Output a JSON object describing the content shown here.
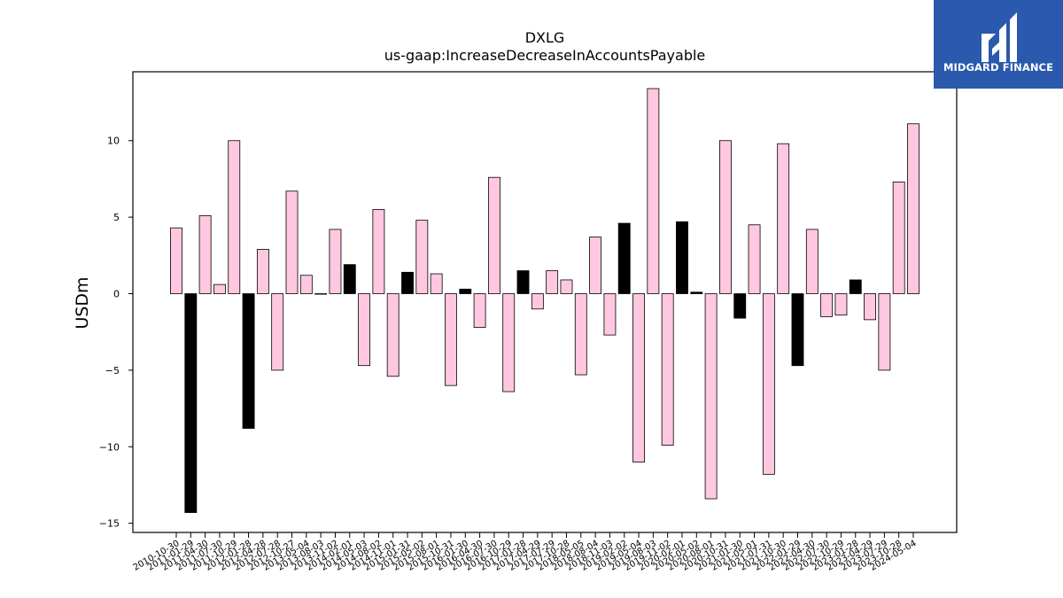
{
  "logo": {
    "text": "MIDGARD FINANCE",
    "background": "#2a59ad"
  },
  "chart_data": {
    "type": "bar",
    "title": "DXLG",
    "subtitle": "us-gaap:IncreaseDecreaseInAccountsPayable",
    "xlabel": "",
    "ylabel": "USDm",
    "ylim": [
      -15.6,
      14.5
    ],
    "yticks": [
      -15,
      -10,
      -5,
      0,
      5,
      10
    ],
    "grid": false,
    "colors": {
      "quarter": "#ffc8e0",
      "annual": "#000000",
      "edge": "#000000"
    },
    "categories": [
      "2010-10-30",
      "2011-01-29",
      "2011-04-30",
      "2011-07-30",
      "2011-10-29",
      "2012-01-28",
      "2012-04-28",
      "2012-07-28",
      "2012-10-27",
      "2013-05-04",
      "2013-08-03",
      "2013-11-02",
      "2014-02-01",
      "2014-05-03",
      "2014-08-02",
      "2014-11-01",
      "2015-01-31",
      "2015-05-02",
      "2015-08-01",
      "2015-10-31",
      "2016-01-30",
      "2016-04-30",
      "2016-07-30",
      "2016-10-29",
      "2017-01-28",
      "2017-04-29",
      "2017-07-29",
      "2017-10-28",
      "2018-05-05",
      "2018-08-04",
      "2018-11-03",
      "2019-02-02",
      "2019-05-04",
      "2019-08-03",
      "2019-11-02",
      "2020-02-01",
      "2020-05-02",
      "2020-08-01",
      "2020-10-31",
      "2021-01-30",
      "2021-05-01",
      "2021-07-31",
      "2021-10-30",
      "2022-01-29",
      "2022-04-30",
      "2022-07-30",
      "2022-10-29",
      "2023-01-28",
      "2023-04-29",
      "2023-07-29",
      "2023-10-28",
      "2024-05-04"
    ],
    "values": [
      4.3,
      -14.3,
      5.1,
      0.6,
      10.0,
      -8.8,
      2.9,
      -5.0,
      6.7,
      1.2,
      0.0,
      4.2,
      1.9,
      -4.7,
      5.5,
      -5.4,
      1.4,
      4.8,
      1.3,
      -6.0,
      0.3,
      -2.2,
      7.6,
      -6.4,
      1.5,
      -1.0,
      1.5,
      0.9,
      -5.3,
      3.7,
      -2.7,
      4.6,
      -11.0,
      13.4,
      -9.9,
      4.7,
      0.1,
      -13.4,
      10.0,
      -1.6,
      4.5,
      -11.8,
      9.8,
      -4.7,
      4.2,
      -1.5,
      -1.4,
      0.9,
      -1.7,
      -5.0,
      7.3,
      11.1
    ],
    "annual_flags": [
      0,
      1,
      0,
      0,
      0,
      1,
      0,
      0,
      0,
      0,
      0,
      0,
      1,
      0,
      0,
      0,
      1,
      0,
      0,
      0,
      1,
      0,
      0,
      0,
      1,
      0,
      0,
      0,
      0,
      0,
      0,
      1,
      0,
      0,
      0,
      1,
      1,
      0,
      0,
      1,
      0,
      0,
      0,
      1,
      0,
      0,
      0,
      1,
      0,
      0,
      0,
      0
    ]
  }
}
